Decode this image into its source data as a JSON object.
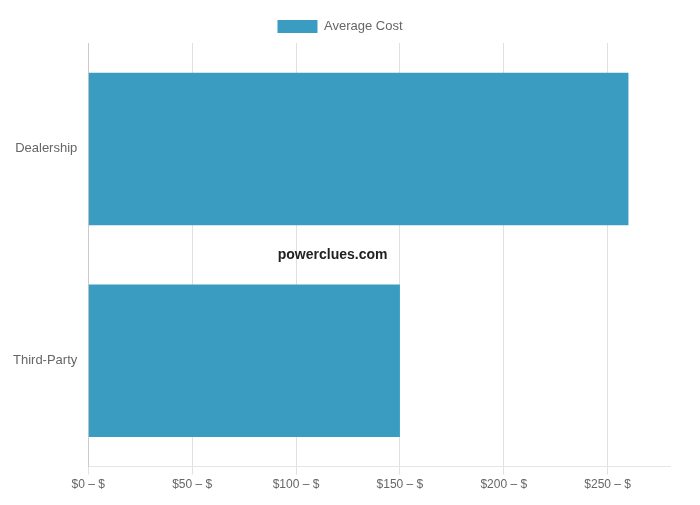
{
  "chart_data": {
    "type": "bar",
    "orientation": "horizontal",
    "categories": [
      "Third-Party",
      "Dealership"
    ],
    "series": [
      {
        "name": "Average Cost",
        "color": "#3a9cc1",
        "values": [
          150,
          260
        ]
      }
    ],
    "xlim": [
      0,
      280
    ],
    "xticks": [
      {
        "value": 0,
        "label": "$0 – $"
      },
      {
        "value": 50,
        "label": "$50 – $"
      },
      {
        "value": 100,
        "label": "$100 – $"
      },
      {
        "value": 150,
        "label": "$150 – $"
      },
      {
        "value": 200,
        "label": "$200 – $"
      },
      {
        "value": 250,
        "label": "$250 – $"
      }
    ],
    "grid": true,
    "legend": "top",
    "annotation": "powerclues.com"
  }
}
